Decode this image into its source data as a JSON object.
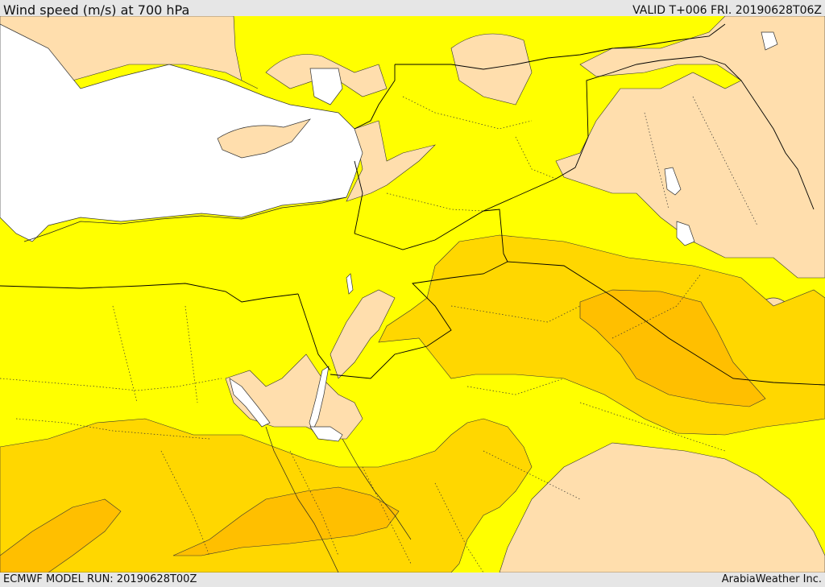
{
  "header": {
    "title": "Wind speed (m/s) at 700 hPa",
    "valid_time": "VALID T+006 FRI. 20190628T06Z"
  },
  "footer": {
    "model_run": "ECMWF MODEL RUN: 20190628T00Z",
    "credit": "ArabiaWeather Inc."
  },
  "map": {
    "colors": {
      "sea": "#ffffff",
      "band_low": "#ffdead",
      "band_mid": "#ffff00",
      "band_high": "#ffd700",
      "band_max": "#ffbf00",
      "border": "#000000"
    }
  }
}
